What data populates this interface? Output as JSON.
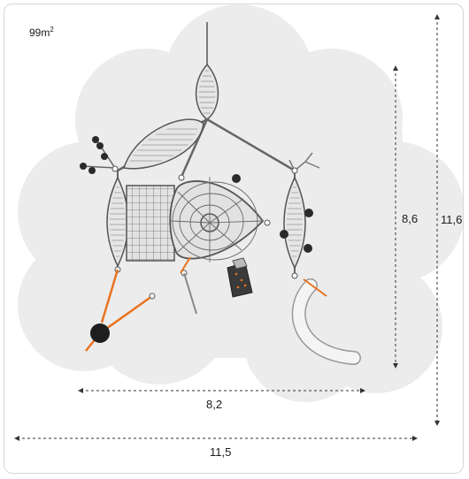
{
  "area": {
    "value": "99m",
    "sup": "2"
  },
  "dimensions": {
    "inner_width": "8,2",
    "inner_height": "8,6",
    "outer_width": "11,5",
    "outer_height": "11,6"
  },
  "colors": {
    "safety_zone": "#ececec",
    "rope": "#5b5b5b",
    "net": "#cfcfcf",
    "accent": "#e9731e",
    "dimension_line": "#333333"
  }
}
